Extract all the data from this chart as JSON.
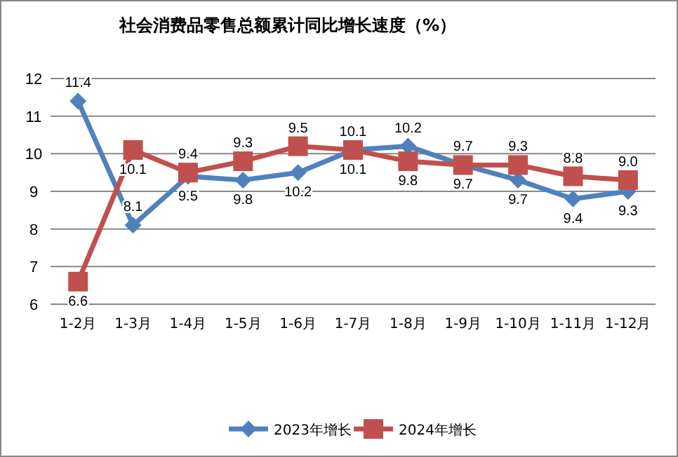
{
  "chart_data": {
    "type": "line",
    "title": "社会消费品零售总额累计同比增长速度（%）",
    "categories": [
      "1-2月",
      "1-3月",
      "1-4月",
      "1-5月",
      "1-6月",
      "1-7月",
      "1-8月",
      "1-9月",
      "1-10月",
      "1-11月",
      "1-12月"
    ],
    "series": [
      {
        "name": "2023年增长",
        "color": "#4f81bd",
        "marker": "diamond",
        "values": [
          11.4,
          8.1,
          9.4,
          9.3,
          9.5,
          10.1,
          10.2,
          9.7,
          9.3,
          8.8,
          9.0
        ]
      },
      {
        "name": "2024年增长",
        "color": "#c0504d",
        "marker": "square",
        "values": [
          6.6,
          10.1,
          9.5,
          9.8,
          10.2,
          10.1,
          9.8,
          9.7,
          9.7,
          9.4,
          9.3
        ]
      }
    ],
    "annotations": [
      {
        "text": "11.4",
        "x": "1-2月",
        "y": 11.4
      },
      {
        "text": "8.1",
        "x": "1-3月",
        "y": 8.1
      },
      {
        "text": "9.5",
        "x": "1-4月",
        "y": 9.4
      },
      {
        "text": "9.8",
        "x": "1-5月",
        "y": 9.3
      },
      {
        "text": "10.2",
        "x": "1-6月",
        "y": 9.5
      },
      {
        "text": "10.1",
        "x": "1-7月",
        "y": 10.1
      },
      {
        "text": "10.2",
        "x": "1-8月",
        "y": 10.2
      },
      {
        "text": "9.7",
        "x": "1-9月",
        "y": 9.7
      },
      {
        "text": "9.7",
        "x": "1-10月",
        "y": 9.3
      },
      {
        "text": "9.4",
        "x": "1-11月",
        "y": 8.8
      },
      {
        "text": "9.3",
        "x": "1-12月",
        "y": 9.0
      },
      {
        "text": "6.6",
        "x": "1-2月",
        "y": 6.6
      },
      {
        "text": "10.1",
        "x": "1-3月",
        "y": 10.1
      },
      {
        "text": "9.4",
        "x": "1-4月",
        "y": 9.5
      },
      {
        "text": "9.3",
        "x": "1-5月",
        "y": 9.8
      },
      {
        "text": "9.5",
        "x": "1-6月",
        "y": 10.2
      },
      {
        "text": "10.1",
        "x": "1-7月",
        "y": 10.1
      },
      {
        "text": "9.8",
        "x": "1-8月",
        "y": 9.8
      },
      {
        "text": "9.7",
        "x": "1-9月",
        "y": 9.7
      },
      {
        "text": "9.3",
        "x": "1-10月",
        "y": 9.7
      },
      {
        "text": "8.8",
        "x": "1-11月",
        "y": 9.4
      },
      {
        "text": "9.0",
        "x": "1-12月",
        "y": 9.3
      }
    ],
    "ylim": [
      6,
      12
    ],
    "yticks": [
      6,
      7,
      8,
      9,
      10,
      11,
      12
    ],
    "grid": "y",
    "legend": "bottom",
    "line_style": "solid"
  }
}
